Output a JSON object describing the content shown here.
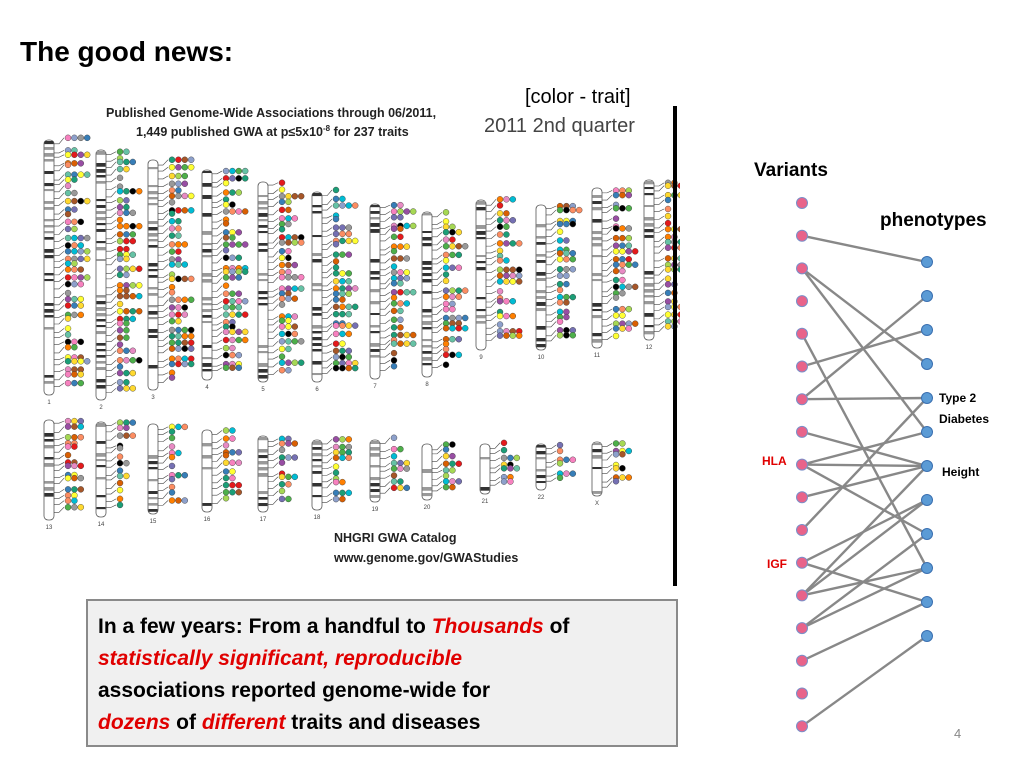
{
  "slide": {
    "title": "The good news:",
    "color_note": "[color - trait]",
    "page_number": "4"
  },
  "catalog_figure": {
    "heading_line1": "Published Genome-Wide Associations through 06/2011,",
    "heading_line2_pre": "1,449 published GWA at p≤5x10",
    "heading_line2_exp": "-8",
    "heading_line2_post": " for 237 traits",
    "quarter": "2011 2nd quarter",
    "source_line1": "NHGRI GWA Catalog",
    "source_line2": "www.genome.gov/GWAStudies",
    "chromosome_labels": [
      "1",
      "2",
      "3",
      "4",
      "5",
      "6",
      "7",
      "8",
      "9",
      "10",
      "11",
      "12",
      "13",
      "14",
      "15",
      "16",
      "17",
      "18",
      "19",
      "20",
      "21",
      "22",
      "X"
    ],
    "trait_colors": [
      "#e41a1c",
      "#377eb8",
      "#4daf4a",
      "#984ea3",
      "#ff7f00",
      "#ffff33",
      "#a65628",
      "#f781bf",
      "#999999",
      "#66c2a5",
      "#fc8d62",
      "#8da0cb",
      "#e78ac3",
      "#a6d854",
      "#ffd92f",
      "#1b9e77",
      "#d95f02",
      "#7570b3",
      "#000000",
      "#00bcd4"
    ]
  },
  "callout": {
    "p1": "In a few years:  From a handful to ",
    "p2": "Thousands",
    "p3": " of",
    "p4": "statistically significant, reproducible",
    "p5": "associations reported genome-wide for",
    "p6": "dozens",
    "p7": " of ",
    "p8": "different",
    "p9": " traits and diseases"
  },
  "network": {
    "variants_label": "Variants",
    "phenotypes_label": "phenotypes",
    "variant_labels": {
      "hla": "HLA",
      "igf": "IGF"
    },
    "phenotype_labels": {
      "t2d_line1": "Type 2",
      "t2d_line2": "Diabetes",
      "height": "Height"
    },
    "variant_color": "#e8638a",
    "phenotype_color": "#5b9bd5",
    "edge_color": "#888888",
    "variant_count": 17,
    "phenotype_count": 12,
    "edges": [
      [
        1,
        0
      ],
      [
        2,
        3
      ],
      [
        2,
        5
      ],
      [
        4,
        9
      ],
      [
        5,
        2
      ],
      [
        6,
        1
      ],
      [
        6,
        4
      ],
      [
        7,
        6
      ],
      [
        8,
        5
      ],
      [
        8,
        6
      ],
      [
        8,
        8
      ],
      [
        9,
        6
      ],
      [
        10,
        4
      ],
      [
        11,
        7
      ],
      [
        11,
        10
      ],
      [
        12,
        6
      ],
      [
        12,
        7
      ],
      [
        12,
        9
      ],
      [
        13,
        8
      ],
      [
        13,
        9
      ],
      [
        14,
        10
      ],
      [
        16,
        11
      ]
    ]
  }
}
